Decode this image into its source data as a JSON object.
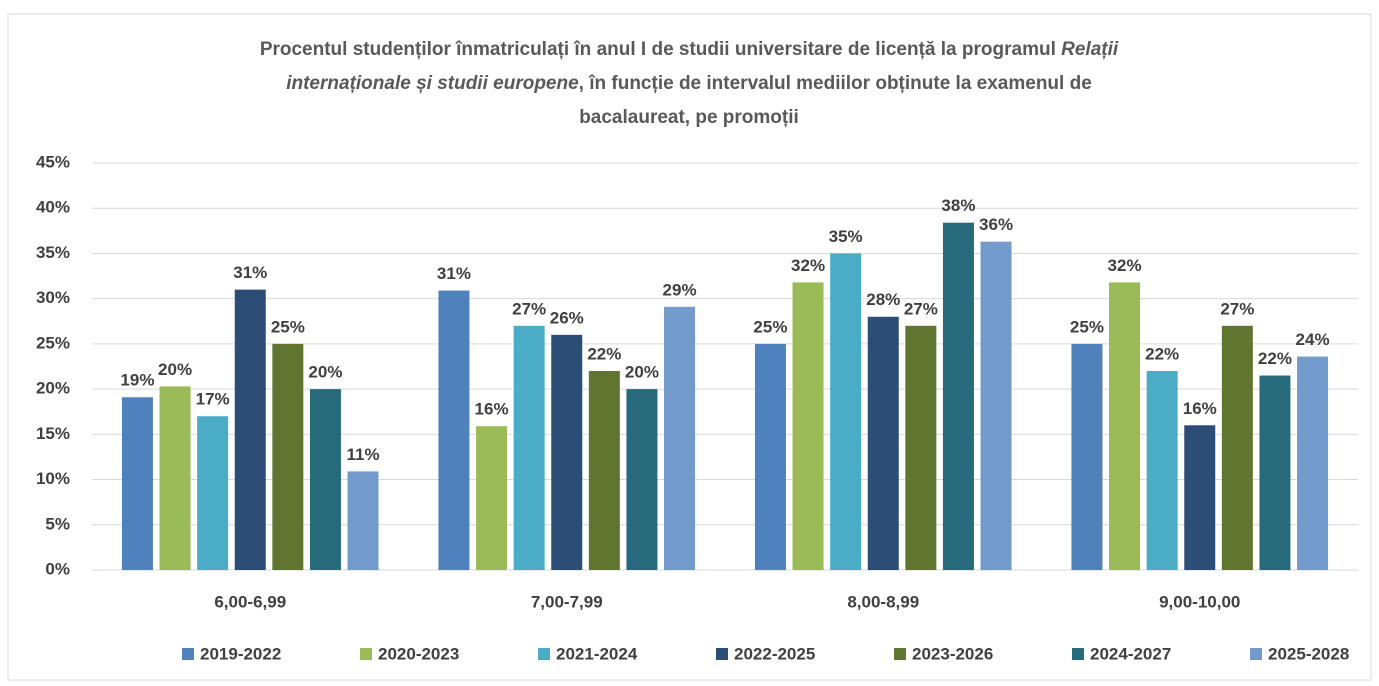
{
  "chart_data": {
    "type": "bar",
    "title_lines": [
      [
        {
          "text": "Procentul studenților înmatriculați în anul I de studii universitare de licență la programul ",
          "italic": false
        },
        {
          "text": "Relații",
          "italic": true
        }
      ],
      [
        {
          "text": "internaționale și studii europene",
          "italic": true
        },
        {
          "text": ", în funcție de intervalul mediilor obținute la examenul de",
          "italic": false
        }
      ],
      [
        {
          "text": "bacalaureat, pe promoții",
          "italic": false
        }
      ]
    ],
    "categories": [
      "6,00-6,99",
      "7,00-7,99",
      "8,00-8,99",
      "9,00-10,00"
    ],
    "series": [
      {
        "name": "2019-2022",
        "color": "#4f81bd",
        "values": [
          19.1,
          30.9,
          25,
          25
        ],
        "value_labels": [
          "19%",
          "31%",
          "25%",
          "25%"
        ]
      },
      {
        "name": "2020-2023",
        "color": "#9bbb59",
        "values": [
          20.3,
          15.9,
          31.8,
          31.8
        ],
        "value_labels": [
          "20%",
          "16%",
          "32%",
          "32%"
        ]
      },
      {
        "name": "2021-2024",
        "color": "#4bacc6",
        "values": [
          17,
          27,
          35,
          22
        ],
        "value_labels": [
          "17%",
          "27%",
          "35%",
          "22%"
        ]
      },
      {
        "name": "2022-2025",
        "color": "#2c4d75",
        "values": [
          31,
          26,
          28,
          16
        ],
        "value_labels": [
          "31%",
          "26%",
          "28%",
          "16%"
        ]
      },
      {
        "name": "2023-2026",
        "color": "#5f7530",
        "values": [
          25,
          22,
          27,
          27
        ],
        "value_labels": [
          "25%",
          "22%",
          "27%",
          "27%"
        ]
      },
      {
        "name": "2024-2027",
        "color": "#276a7c",
        "values": [
          20,
          20,
          38.4,
          21.5
        ],
        "value_labels": [
          "20%",
          "20%",
          "38%",
          "22%"
        ]
      },
      {
        "name": "2025-2028",
        "color": "#729aca",
        "values": [
          10.9,
          29.1,
          36.3,
          23.6
        ],
        "value_labels": [
          "11%",
          "29%",
          "36%",
          "24%"
        ]
      }
    ],
    "ylim": [
      0,
      45
    ],
    "yticks": [
      {
        "value": 0,
        "label": "0%"
      },
      {
        "value": 5,
        "label": "5%"
      },
      {
        "value": 10,
        "label": "10%"
      },
      {
        "value": 15,
        "label": "15%"
      },
      {
        "value": 20,
        "label": "20%"
      },
      {
        "value": 25,
        "label": "25%"
      },
      {
        "value": 30,
        "label": "30%"
      },
      {
        "value": 35,
        "label": "35%"
      },
      {
        "value": 40,
        "label": "40%"
      },
      {
        "value": 45,
        "label": "45%"
      }
    ],
    "grid": true,
    "legend": "bottom"
  }
}
